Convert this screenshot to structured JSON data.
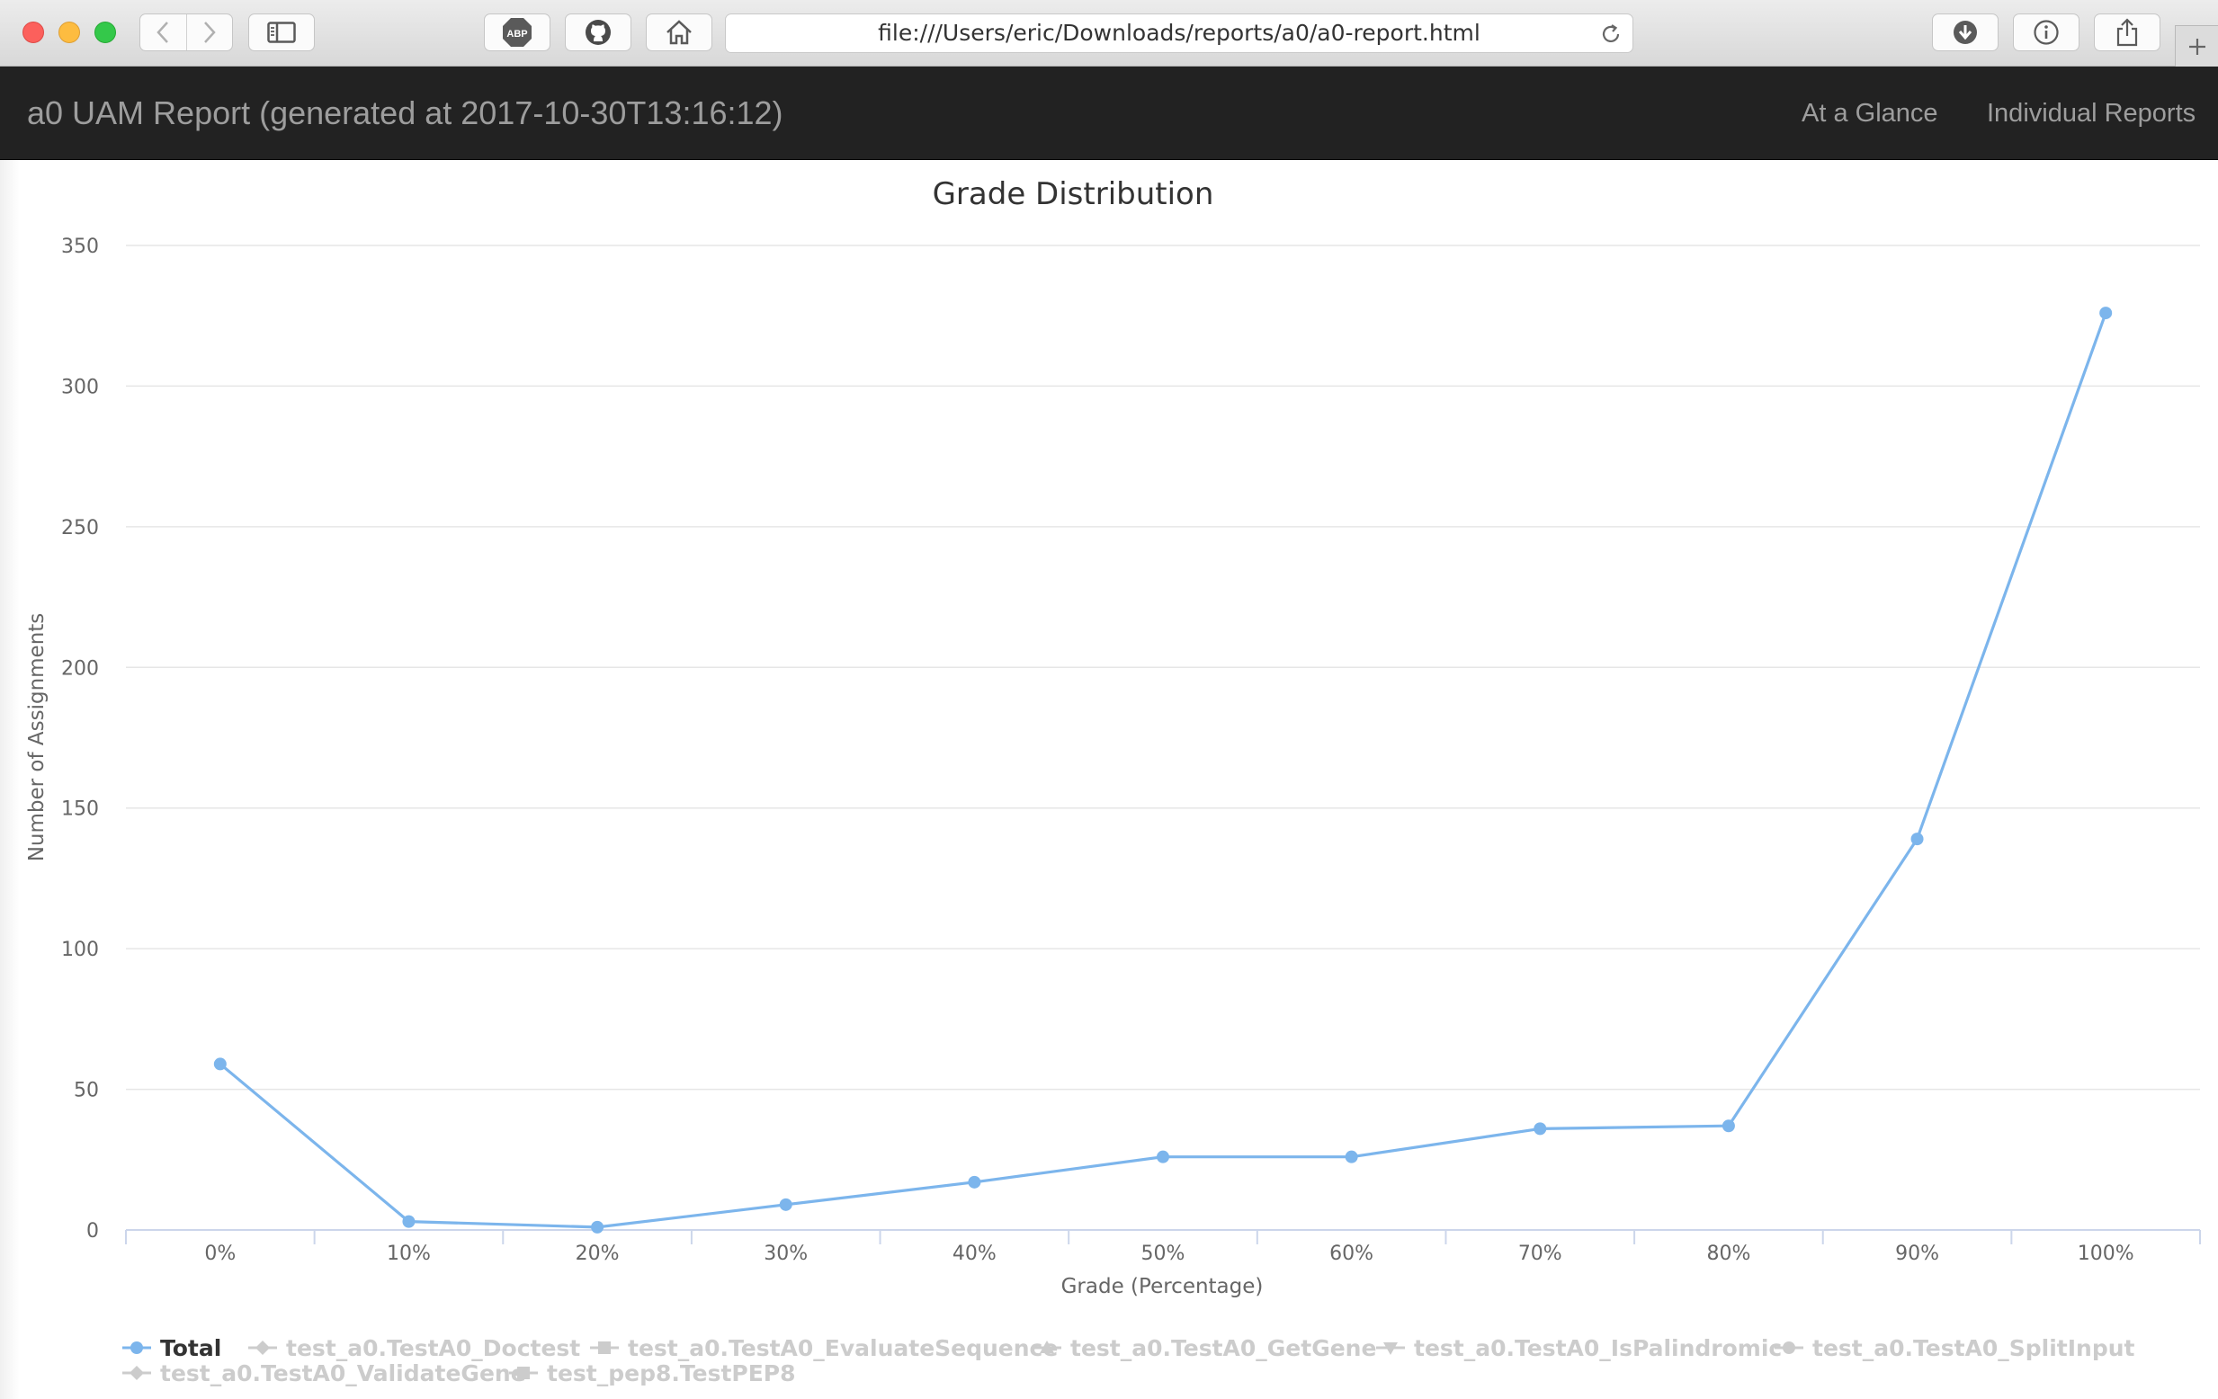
{
  "browser": {
    "url": "file:///Users/eric/Downloads/reports/a0/a0-report.html",
    "icons": [
      "back-icon",
      "forward-icon",
      "sidebar-icon",
      "adblock-icon",
      "github-icon",
      "home-icon",
      "reload-icon",
      "downloads-icon",
      "info-icon",
      "share-icon",
      "plus-icon"
    ],
    "adblock_label": "ABP"
  },
  "navbar": {
    "brand": "a0 UAM Report (generated at 2017-10-30T13:16:12)",
    "links": [
      "At a Glance",
      "Individual Reports"
    ]
  },
  "chart_data": {
    "type": "line",
    "title": "Grade Distribution",
    "xlabel": "Grade (Percentage)",
    "ylabel": "Number of Assignments",
    "categories": [
      "0%",
      "10%",
      "20%",
      "30%",
      "40%",
      "50%",
      "60%",
      "70%",
      "80%",
      "90%",
      "100%"
    ],
    "y_ticks": [
      0,
      50,
      100,
      150,
      200,
      250,
      300,
      350
    ],
    "ylim": [
      0,
      350
    ],
    "grid": true,
    "legend_position": "bottom-left",
    "series": [
      {
        "name": "Total",
        "values": [
          59,
          3,
          1,
          9,
          17,
          26,
          26,
          36,
          37,
          139,
          326
        ],
        "visible": true,
        "color": "#7cb5ec",
        "marker": "circle"
      },
      {
        "name": "test_a0.TestA0_Doctest",
        "visible": false,
        "marker": "diamond"
      },
      {
        "name": "test_a0.TestA0_EvaluateSequence",
        "visible": false,
        "marker": "square"
      },
      {
        "name": "test_a0.TestA0_GetGene",
        "visible": false,
        "marker": "triangle"
      },
      {
        "name": "test_a0.TestA0_IsPalindromic",
        "visible": false,
        "marker": "triangle-down"
      },
      {
        "name": "test_a0.TestA0_SplitInput",
        "visible": false,
        "marker": "circle"
      },
      {
        "name": "test_a0.TestA0_ValidateGene",
        "visible": false,
        "marker": "diamond"
      },
      {
        "name": "test_pep8.TestPEP8",
        "visible": false,
        "marker": "square"
      }
    ],
    "colors": {
      "line": "#7cb5ec",
      "grid": "#e6e6e6",
      "axis": "#ccd6eb",
      "legend_hidden": "#cccccc",
      "legend_active": "#333333"
    }
  }
}
